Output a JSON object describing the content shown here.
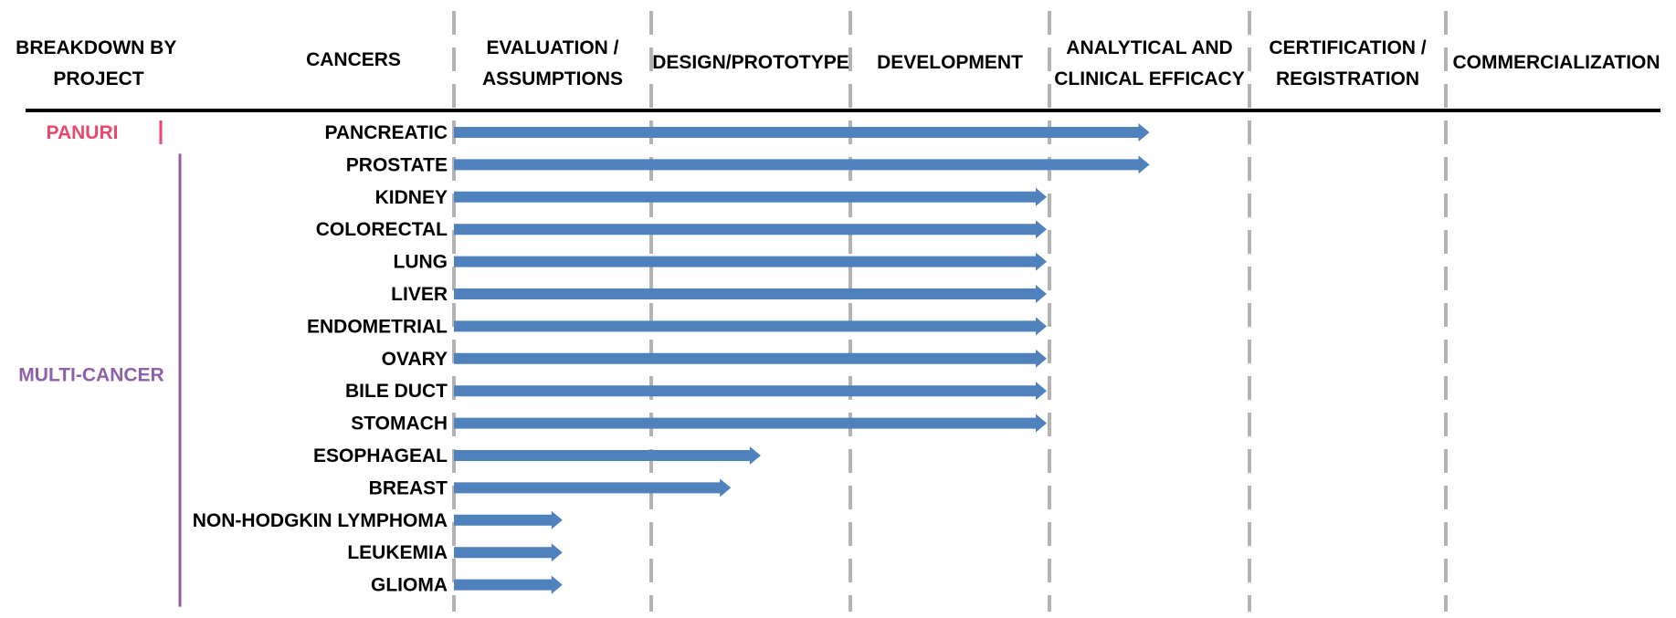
{
  "colors": {
    "arrow": "#4f81bd",
    "divider": "#b3b3b3",
    "panuri": "#e8486e",
    "multi_cancer": "#8e60a8",
    "rule": "#000000"
  },
  "header": {
    "breakdown": [
      "BREAKDOWN BY",
      "PROJECT"
    ],
    "cancers": "CANCERS"
  },
  "stages": [
    {
      "lines": [
        "EVALUATION /",
        "ASSUMPTIONS"
      ]
    },
    {
      "lines": [
        "DESIGN/PROTOTYPE"
      ]
    },
    {
      "lines": [
        "DEVELOPMENT"
      ]
    },
    {
      "lines": [
        "ANALYTICAL AND",
        "CLINICAL EFFICACY"
      ]
    },
    {
      "lines": [
        "CERTIFICATION /",
        "REGISTRATION"
      ]
    },
    {
      "lines": [
        "COMMERCIALIZATION"
      ]
    }
  ],
  "projects": [
    {
      "name": "PANURI",
      "color": "#e8486e",
      "first_row": 0,
      "last_row": 0
    },
    {
      "name": "MULTI-CANCER",
      "color": "#8e60a8",
      "first_row": 1,
      "last_row": 14
    }
  ],
  "rows": [
    {
      "label": "PANCREATIC",
      "progress": 3.5
    },
    {
      "label": "PROSTATE",
      "progress": 3.5
    },
    {
      "label": "KIDNEY",
      "progress": 3.0
    },
    {
      "label": "COLORECTAL",
      "progress": 3.0
    },
    {
      "label": "LUNG",
      "progress": 3.0
    },
    {
      "label": "LIVER",
      "progress": 3.0
    },
    {
      "label": "ENDOMETRIAL",
      "progress": 3.0
    },
    {
      "label": "OVARY",
      "progress": 3.0
    },
    {
      "label": "BILE DUCT",
      "progress": 3.0
    },
    {
      "label": "STOMACH",
      "progress": 3.0
    },
    {
      "label": "ESOPHAGEAL",
      "progress": 1.55
    },
    {
      "label": "BREAST",
      "progress": 1.4
    },
    {
      "label": "NON-HODGKIN LYMPHOMA",
      "progress": 0.55
    },
    {
      "label": "LEUKEMIA",
      "progress": 0.55
    },
    {
      "label": "GLIOMA",
      "progress": 0.55
    }
  ]
}
